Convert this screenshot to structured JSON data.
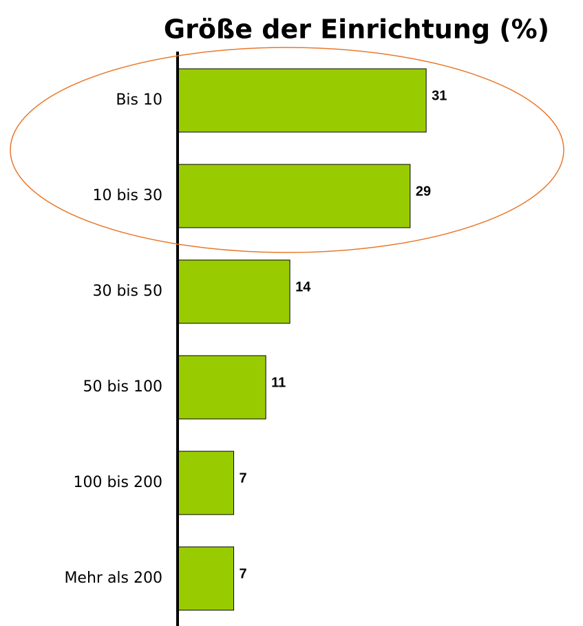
{
  "chart_data": {
    "type": "bar",
    "orientation": "horizontal",
    "title": "Größe der Einrichtung (%)",
    "categories": [
      "Bis 10",
      "10 bis 30",
      "30 bis 50",
      "50 bis 100",
      "100 bis 200",
      "Mehr als 200"
    ],
    "values": [
      31,
      29,
      14,
      11,
      7,
      7
    ],
    "color": "#99cc00"
  }
}
